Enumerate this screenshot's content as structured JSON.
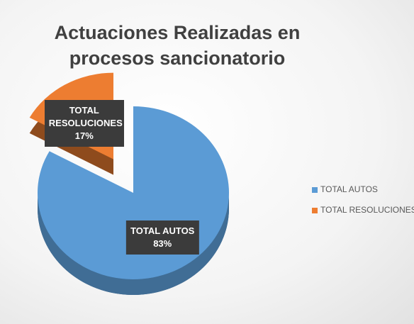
{
  "chart_data": {
    "type": "pie",
    "title": "Actuaciones Realizadas en procesos sancionatorio",
    "categories": [
      "TOTAL AUTOS",
      "TOTAL RESOLUCIONES"
    ],
    "values": [
      83,
      17
    ],
    "value_labels": [
      "83%",
      "17%"
    ],
    "colors": [
      "#5b9bd5",
      "#ed7d31"
    ],
    "legend": "right"
  }
}
